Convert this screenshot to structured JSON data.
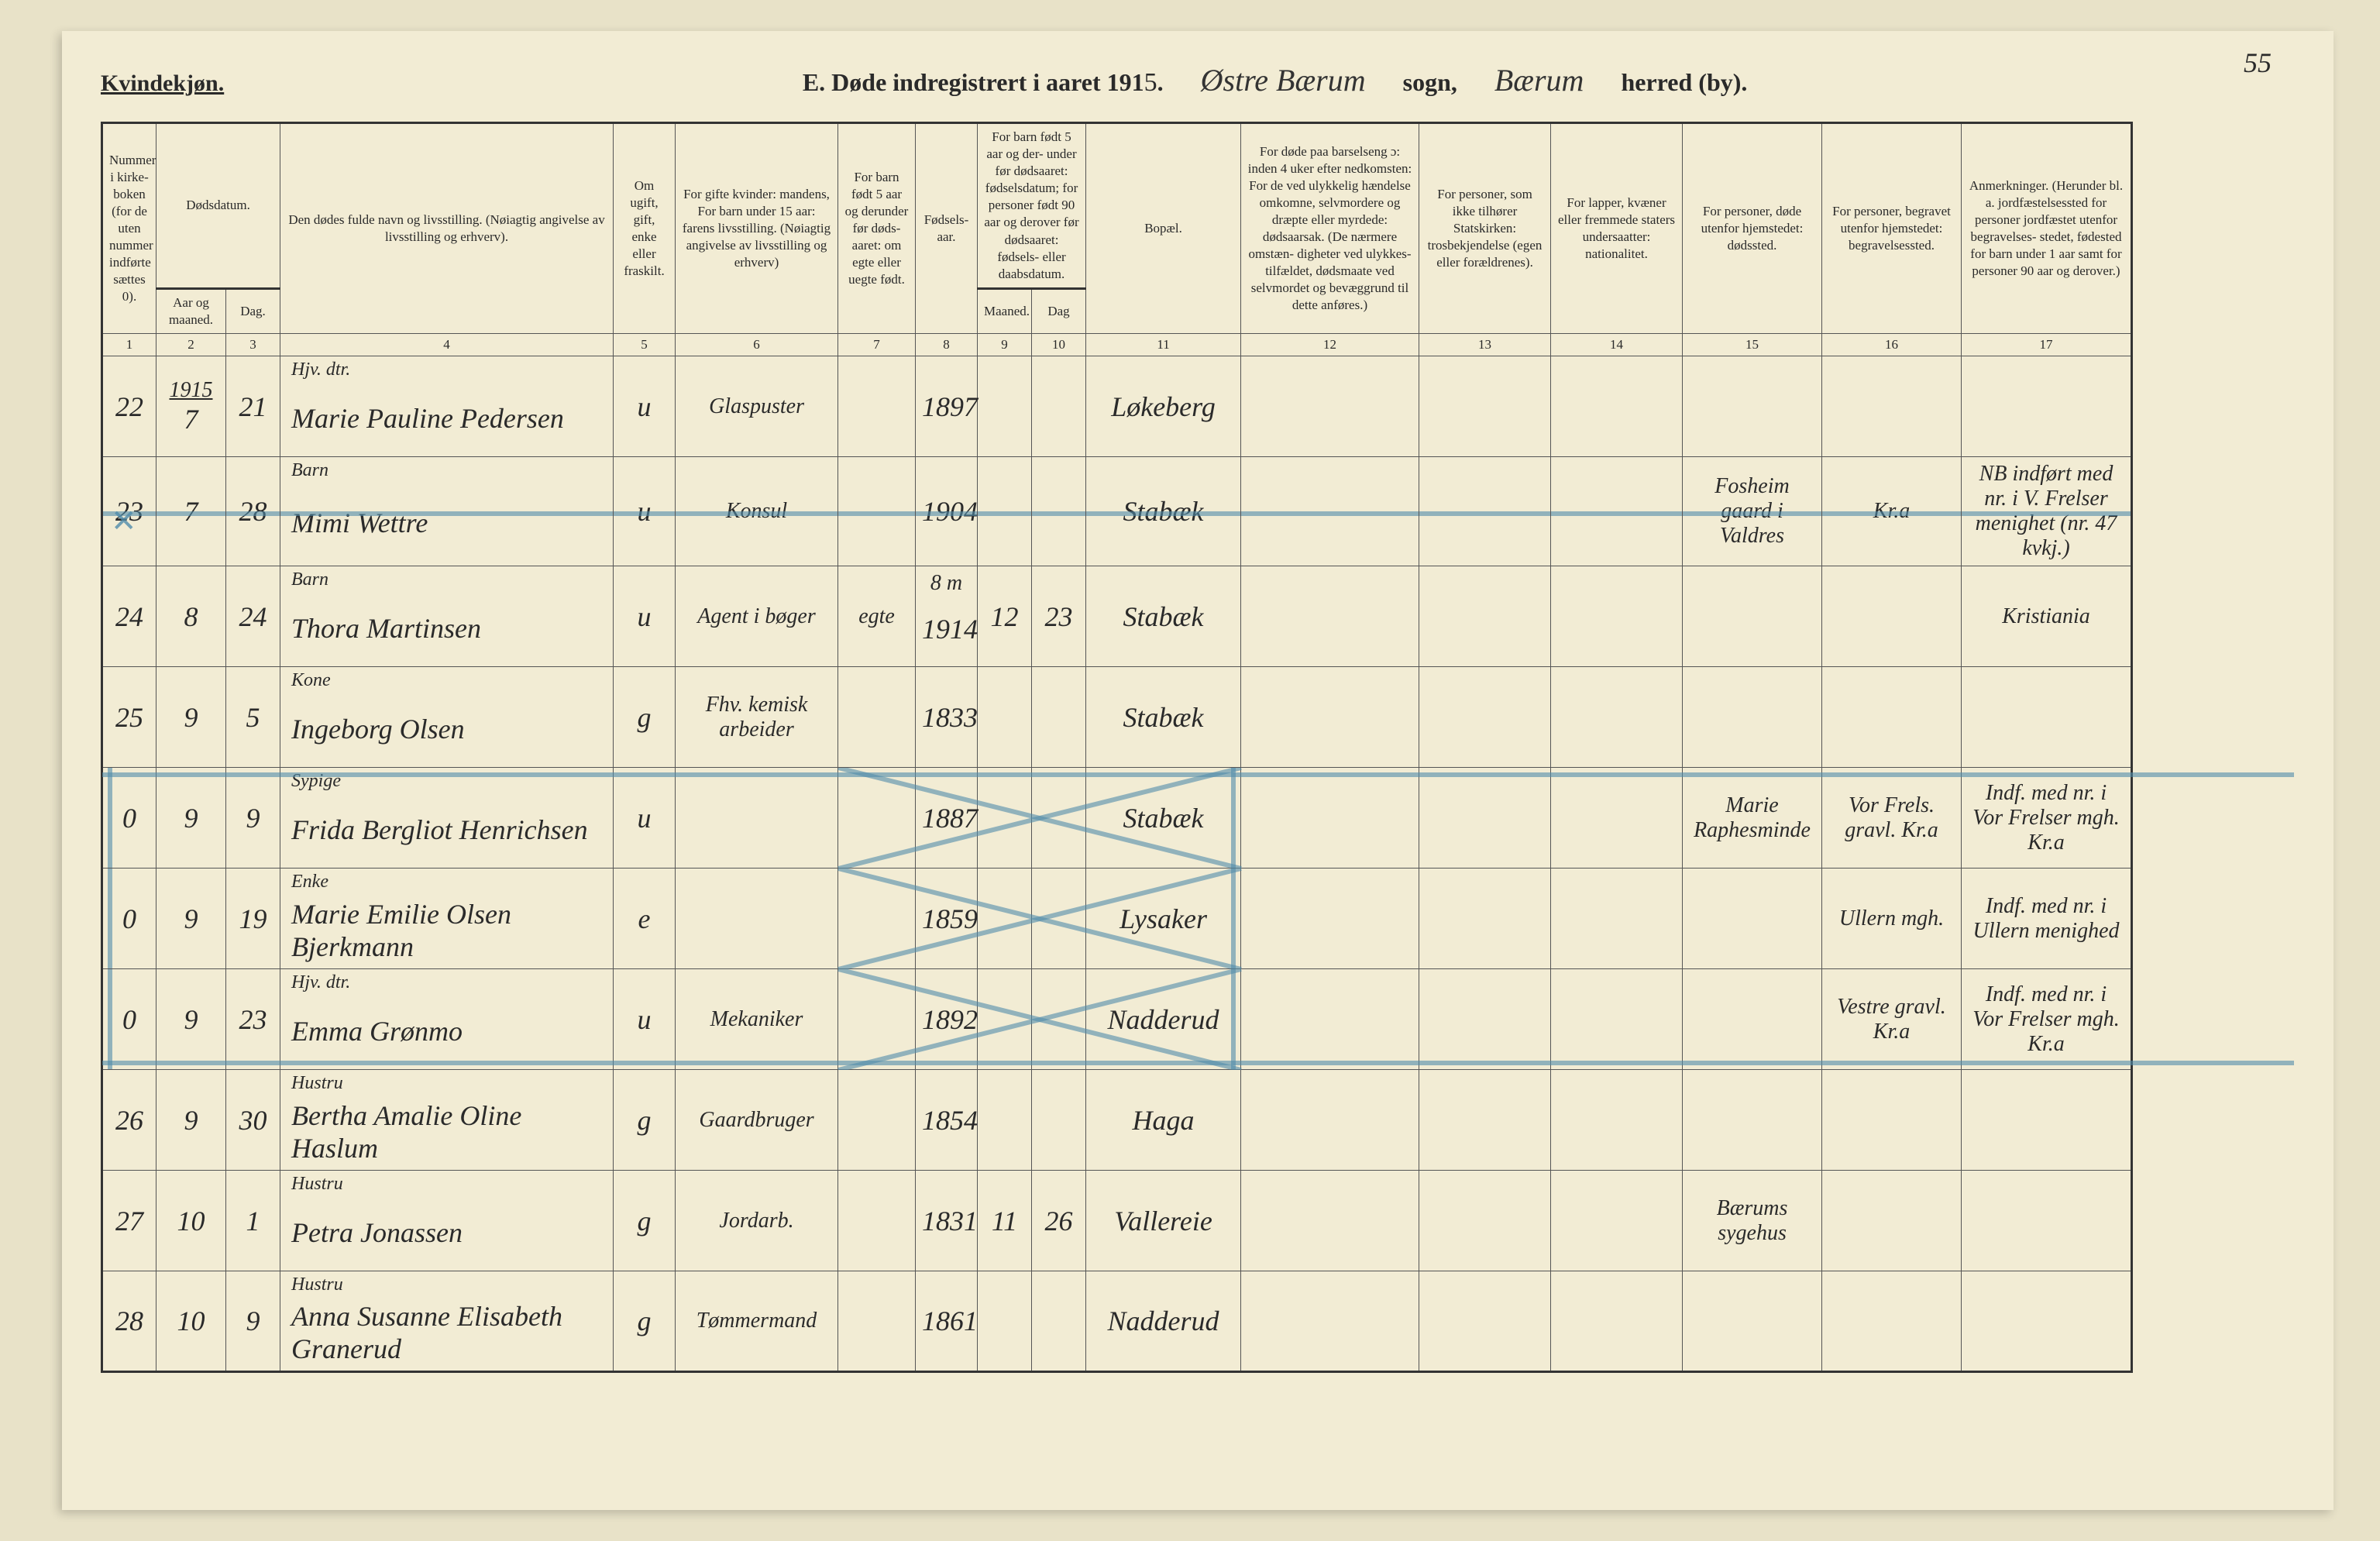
{
  "page_number": "55",
  "gender_label": "Kvindekjøn.",
  "title": {
    "prefix": "E.",
    "text": "Døde indregistrert i aaret 191",
    "year_suffix": "5",
    "period": ".",
    "parish_hand": "Østre Bærum",
    "parish_label": "sogn,",
    "district_hand": "Bærum",
    "district_label": "herred (by)."
  },
  "columns": {
    "c1": "Nummer i kirke- boken (for de uten nummer indførte sættes 0).",
    "c2_top": "Dødsdatum.",
    "c2a": "Aar og maaned.",
    "c2b": "Dag.",
    "c4": "Den dødes fulde navn og livsstilling. (Nøiagtig angivelse av livsstilling og erhverv).",
    "c5": "Om ugift, gift, enke eller fraskilt.",
    "c6": "For gifte kvinder: mandens, For barn under 15 aar: farens livsstilling. (Nøiagtig angivelse av livsstilling og erhverv)",
    "c7": "For barn født 5 aar og derunder før døds- aaret: om egte eller uegte født.",
    "c8": "Fødsels- aar.",
    "c9_top": "For barn født 5 aar og der- under før dødsaaret: fødselsdatum; for personer født 90 aar og derover før dødsaaret: fødsels- eller daabsdatum.",
    "c9a": "Maaned.",
    "c9b": "Dag",
    "c11": "Bopæl.",
    "c12": "For døde paa barselseng ɔ: inden 4 uker efter nedkomsten: For de ved ulykkelig hændelse omkomne, selvmordere og dræpte eller myrdede: dødsaarsak. (De nærmere omstæn- digheter ved ulykkes- tilfældet, dødsmaate ved selvmordet og bevæggrund til dette anføres.)",
    "c13": "For personer, som ikke tilhører Statskirken: trosbekjendelse (egen eller forældrenes).",
    "c14": "For lapper, kvæner eller fremmede staters undersaatter: nationalitet.",
    "c15": "For personer, døde utenfor hjemstedet: dødssted.",
    "c16": "For personer, begravet utenfor hjemstedet: begravelsessted.",
    "c17": "Anmerkninger. (Herunder bl. a. jordfæstelsessted for personer jordfæstet utenfor begravelses- stedet, fødested for barn under 1 aar samt for personer 90 aar og derover.)"
  },
  "colnums": [
    "1",
    "2",
    "3",
    "4",
    "5",
    "6",
    "7",
    "8",
    "9",
    "10",
    "11",
    "12",
    "13",
    "14",
    "15",
    "16",
    "17"
  ],
  "year_header_cell": "1915",
  "rows": [
    {
      "num": "22",
      "month": "7",
      "day": "21",
      "occ": "Hjv. dtr.",
      "name": "Marie Pauline Pedersen",
      "status": "u",
      "husband": "Glaspuster",
      "legit": "",
      "birth": "1897",
      "bm": "",
      "bd": "",
      "place": "Løkeberg",
      "c12": "",
      "c13": "",
      "c14": "",
      "c15": "",
      "c16": "",
      "c17": "",
      "flag": "normal"
    },
    {
      "num": "23",
      "month": "7",
      "day": "28",
      "occ": "Barn",
      "name": "Mimi Wettre",
      "status": "u",
      "husband": "Konsul",
      "legit": "",
      "birth": "1904",
      "bm": "",
      "bd": "",
      "place": "Stabæk",
      "c12": "",
      "c13": "",
      "c14": "",
      "c15": "Fosheim gaard i Valdres",
      "c16": "Kr.a",
      "c17": "NB indført med nr. i V. Frelser menighet (nr. 47 kvkj.)",
      "flag": "struck"
    },
    {
      "num": "24",
      "month": "8",
      "day": "24",
      "occ": "Barn",
      "name": "Thora Martinsen",
      "status": "u",
      "husband": "Agent i bøger",
      "legit": "egte",
      "birth": "1914",
      "bm": "12",
      "bd": "23",
      "place": "Stabæk",
      "c12": "",
      "c13": "",
      "c14": "",
      "c15": "",
      "c16": "",
      "c17": "Kristiania",
      "flag": "normal",
      "birth_note": "8 m"
    },
    {
      "num": "25",
      "month": "9",
      "day": "5",
      "occ": "Kone",
      "name": "Ingeborg Olsen",
      "status": "g",
      "husband": "Fhv. kemisk arbeider",
      "legit": "",
      "birth": "1833",
      "bm": "",
      "bd": "",
      "place": "Stabæk",
      "c12": "",
      "c13": "",
      "c14": "",
      "c15": "",
      "c16": "",
      "c17": "",
      "flag": "normal"
    },
    {
      "num": "0",
      "month": "9",
      "day": "9",
      "occ": "Sypige",
      "name": "Frida Bergliot Henrichsen",
      "status": "u",
      "husband": "",
      "legit": "",
      "birth": "1887",
      "bm": "",
      "bd": "",
      "place": "Stabæk",
      "c12": "",
      "c13": "",
      "c14": "",
      "c15": "Marie Raphesminde",
      "c16": "Vor Frels. gravl. Kr.a",
      "c17": "Indf. med nr. i Vor Frelser mgh. Kr.a",
      "flag": "crossed"
    },
    {
      "num": "0",
      "month": "9",
      "day": "19",
      "occ": "Enke",
      "name": "Marie Emilie Olsen Bjerkmann",
      "status": "e",
      "husband": "",
      "legit": "",
      "birth": "1859",
      "bm": "",
      "bd": "",
      "place": "Lysaker",
      "c12": "",
      "c13": "",
      "c14": "",
      "c15": "",
      "c16": "Ullern mgh.",
      "c17": "Indf. med nr. i Ullern menighed",
      "flag": "crossed"
    },
    {
      "num": "0",
      "month": "9",
      "day": "23",
      "occ": "Hjv. dtr.",
      "name": "Emma Grønmo",
      "status": "u",
      "husband": "Mekaniker",
      "legit": "",
      "birth": "1892",
      "bm": "",
      "bd": "",
      "place": "Nadderud",
      "c12": "",
      "c13": "",
      "c14": "",
      "c15": "",
      "c16": "Vestre gravl. Kr.a",
      "c17": "Indf. med nr. i Vor Frelser mgh. Kr.a",
      "flag": "crossed"
    },
    {
      "num": "26",
      "month": "9",
      "day": "30",
      "occ": "Hustru",
      "name": "Bertha Amalie Oline Haslum",
      "status": "g",
      "husband": "Gaardbruger",
      "legit": "",
      "birth": "1854",
      "bm": "",
      "bd": "",
      "place": "Haga",
      "c12": "",
      "c13": "",
      "c14": "",
      "c15": "",
      "c16": "",
      "c17": "",
      "flag": "normal"
    },
    {
      "num": "27",
      "month": "10",
      "day": "1",
      "occ": "Hustru",
      "name": "Petra Jonassen",
      "status": "g",
      "husband": "Jordarb.",
      "legit": "",
      "birth": "1831",
      "bm": "11",
      "bd": "26",
      "place": "Vallereie",
      "c12": "",
      "c13": "",
      "c14": "",
      "c15": "Bærums sygehus",
      "c16": "",
      "c17": "",
      "flag": "normal"
    },
    {
      "num": "28",
      "month": "10",
      "day": "9",
      "occ": "Hustru",
      "name": "Anna Susanne Elisabeth Granerud",
      "status": "g",
      "husband": "Tømmermand",
      "legit": "",
      "birth": "1861",
      "bm": "",
      "bd": "",
      "place": "Nadderud",
      "c12": "",
      "c13": "",
      "c14": "",
      "c15": "",
      "c16": "",
      "c17": "",
      "flag": "normal"
    }
  ]
}
